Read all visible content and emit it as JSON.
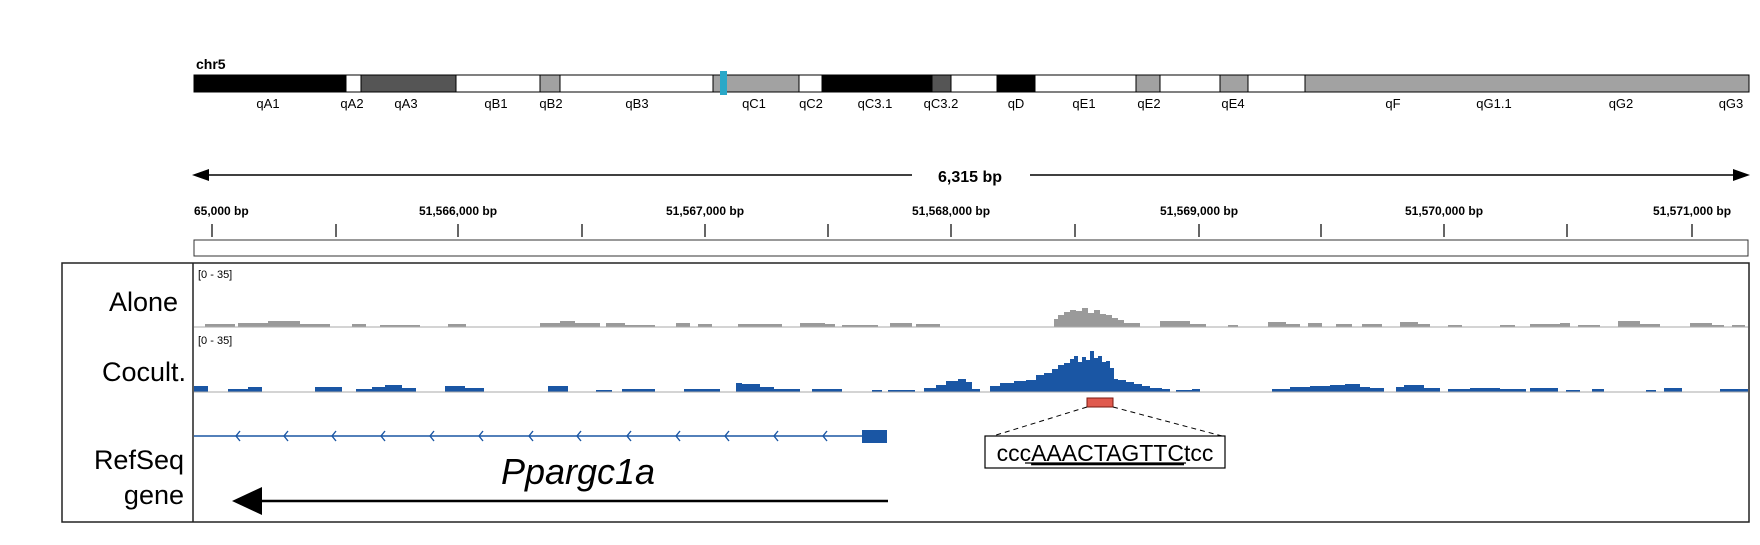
{
  "chromosome": {
    "name": "chr5",
    "bands": [
      {
        "label": "qA1",
        "stain": "black"
      },
      {
        "label": "qA2",
        "stain": "white"
      },
      {
        "label": "qA3",
        "stain": "darkgray"
      },
      {
        "label": "qB1",
        "stain": "white"
      },
      {
        "label": "qB2",
        "stain": "gray"
      },
      {
        "label": "qB3",
        "stain": "white"
      },
      {
        "label": "qC1",
        "stain": "gray"
      },
      {
        "label": "qC2",
        "stain": "white"
      },
      {
        "label": "qC3.1",
        "stain": "black"
      },
      {
        "label": "qC3.2",
        "stain": "darkgray"
      },
      {
        "label": "qD",
        "stain": "white"
      },
      {
        "label": "qE1",
        "stain": "black"
      },
      {
        "label": "qE2",
        "stain": "white"
      },
      {
        "label": "qE4",
        "stain": "gray"
      },
      {
        "label": "qF",
        "stain": "white"
      },
      {
        "label": "qG1.1",
        "stain": "gray"
      },
      {
        "label": "qG2",
        "stain": "white"
      },
      {
        "label": "qG3",
        "stain": "gray"
      }
    ]
  },
  "ruler": {
    "span_label": "6,315 bp",
    "start_label": "65,000 bp",
    "tick_labels": [
      "51,566,000 bp",
      "51,567,000 bp",
      "51,568,000 bp",
      "51,569,000 bp",
      "51,570,000 bp",
      "51,571,000 bp"
    ]
  },
  "tracks": [
    {
      "name": "Alone",
      "range": "[0 - 35]",
      "color": "#9a9a9a"
    },
    {
      "name": "Cocult.",
      "range": "[0 - 35]",
      "color": "#1a56a4"
    }
  ],
  "refseq": {
    "label_line1": "RefSeq",
    "label_line2": "gene",
    "gene_name": "Ppargc1a",
    "gene_color": "#1a56a4",
    "motif_prefix": "ccc",
    "motif_core": "AAACTAGTTC",
    "motif_suffix": "tcc",
    "motif_mark_color": "#e05a4e"
  },
  "colors": {
    "highlight_band": "#2aa8c8"
  }
}
